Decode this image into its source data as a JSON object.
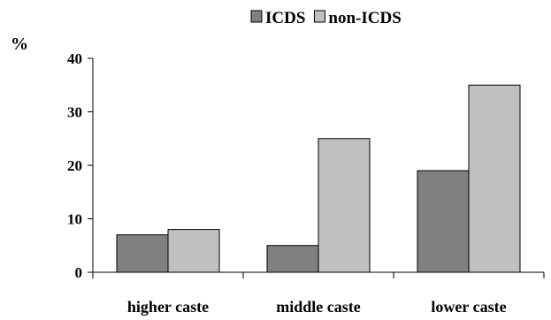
{
  "chart_data": {
    "type": "bar",
    "categories": [
      "higher caste",
      "middle caste",
      "lower caste"
    ],
    "series": [
      {
        "name": "ICDS",
        "values": [
          7,
          5,
          19
        ]
      },
      {
        "name": "non-ICDS",
        "values": [
          8,
          25,
          35
        ]
      }
    ],
    "ylabel": "%",
    "ylim": [
      0,
      40
    ],
    "yticks": [
      0,
      10,
      20,
      30,
      40
    ],
    "grid": false,
    "legend_position": "top-right",
    "colors": {
      "ICDS": "#808080",
      "non-ICDS": "#c0c0c0",
      "axis": "#000000"
    }
  }
}
